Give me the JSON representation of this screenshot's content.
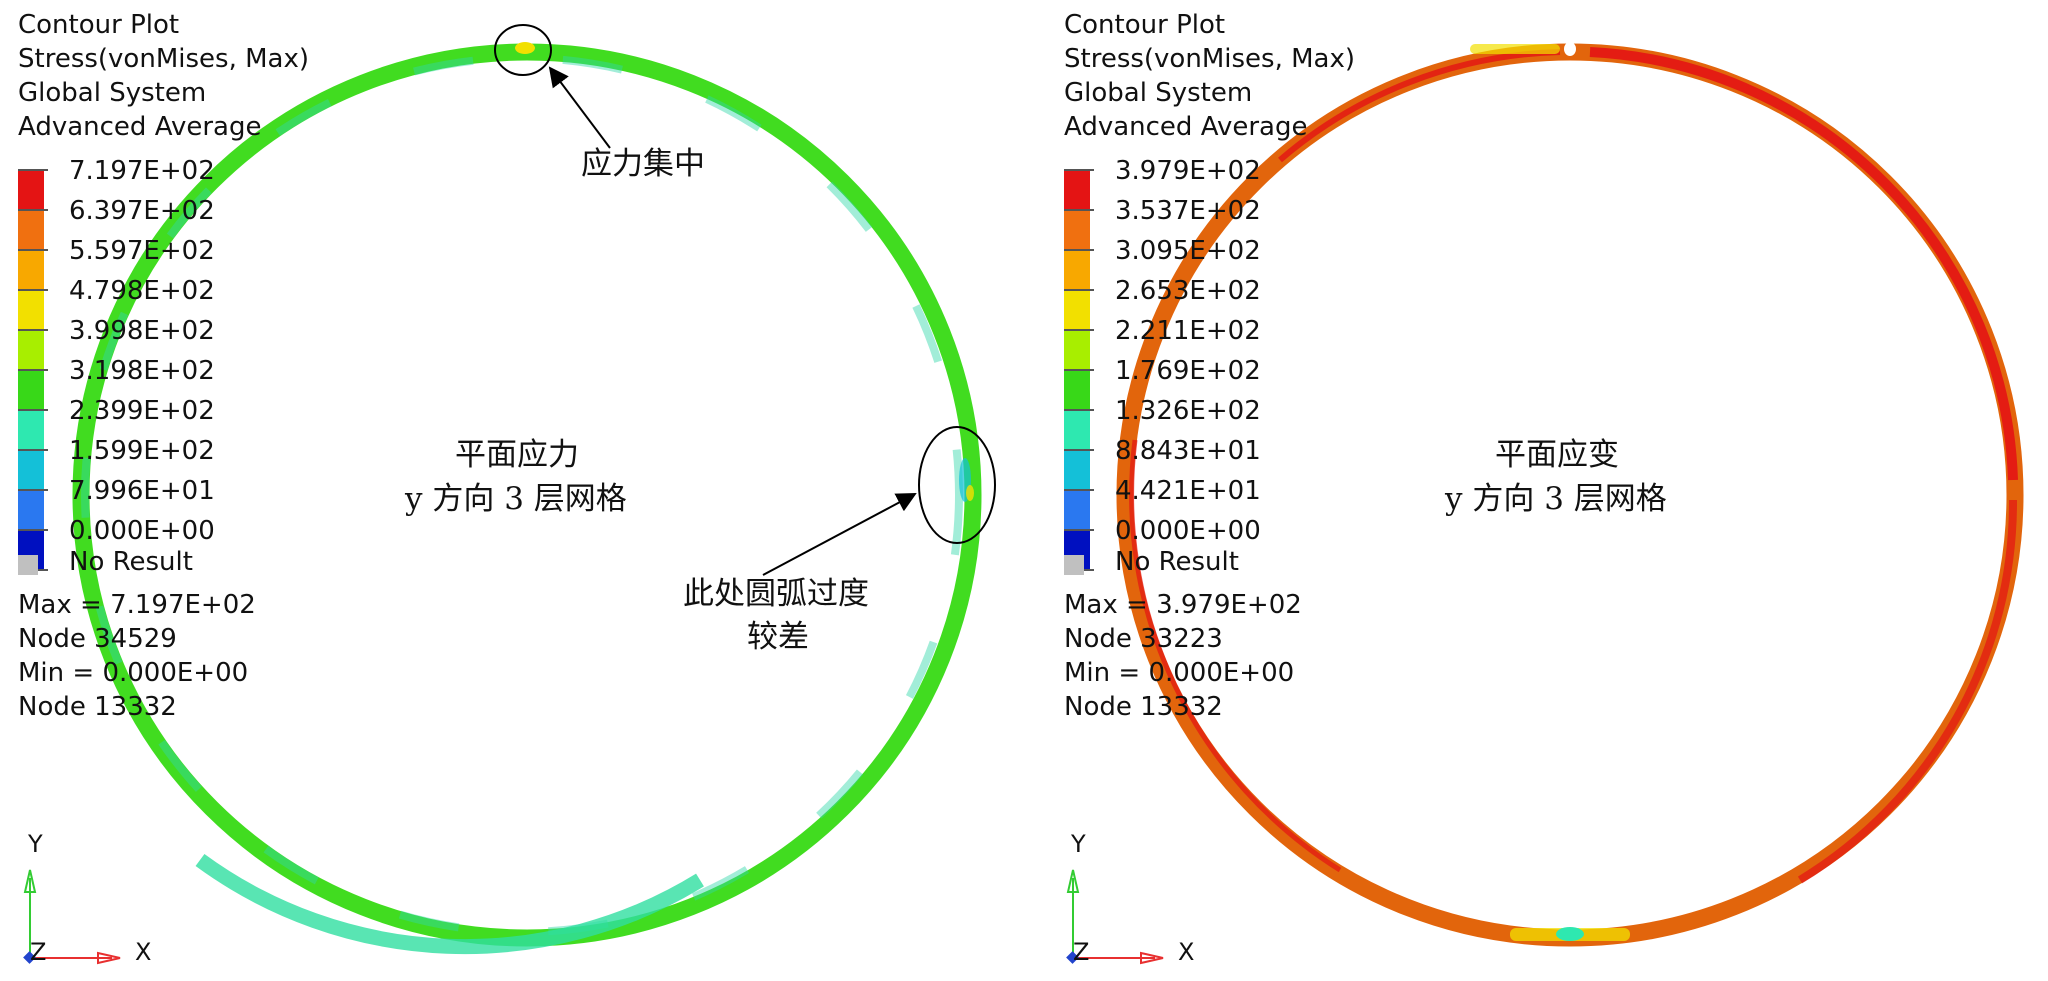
{
  "panels": [
    {
      "header": [
        "Contour Plot",
        "Stress(vonMises, Max)",
        "Global System",
        "Advanced Average"
      ],
      "legend_values": [
        "7.197E+02",
        "6.397E+02",
        "5.597E+02",
        "4.798E+02",
        "3.998E+02",
        "3.198E+02",
        "2.399E+02",
        "1.599E+02",
        "7.996E+01",
        "0.000E+00"
      ],
      "no_result": "No Result",
      "max_line": "Max = 7.197E+02",
      "max_node": "Node 34529",
      "min_line": "Min = 0.000E+00",
      "min_node": "Node 13332",
      "center_text": [
        "平面应力",
        "y 方向 3 层网格"
      ],
      "ring_color": "#44dd22",
      "annotations": [
        "应力集中",
        "此处圆弧过度",
        "较差"
      ]
    },
    {
      "header": [
        "Contour Plot",
        "Stress(vonMises, Max)",
        "Global System",
        "Advanced Average"
      ],
      "legend_values": [
        "3.979E+02",
        "3.537E+02",
        "3.095E+02",
        "2.653E+02",
        "2.211E+02",
        "1.769E+02",
        "1.326E+02",
        "8.843E+01",
        "4.421E+01",
        "0.000E+00"
      ],
      "no_result": "No Result",
      "max_line": "Max = 3.979E+02",
      "max_node": "Node 33223",
      "min_line": "Min = 0.000E+00",
      "min_node": "Node 13332",
      "center_text": [
        "平面应变",
        "y 方向 3 层网格"
      ],
      "ring_color": "#e2650c"
    }
  ],
  "legend_colors": [
    "#e41414",
    "#f07010",
    "#f8a800",
    "#f2e000",
    "#a8ee00",
    "#38d818",
    "#2ee8b0",
    "#14c0d8",
    "#2a78f0",
    "#0010c0"
  ],
  "no_result_color": "#c0c0c0",
  "axes": {
    "y": "Y",
    "z": "Z",
    "x": "X"
  },
  "axis_colors": {
    "y": "#33cc33",
    "x": "#e83030",
    "z": "#2244cc"
  }
}
